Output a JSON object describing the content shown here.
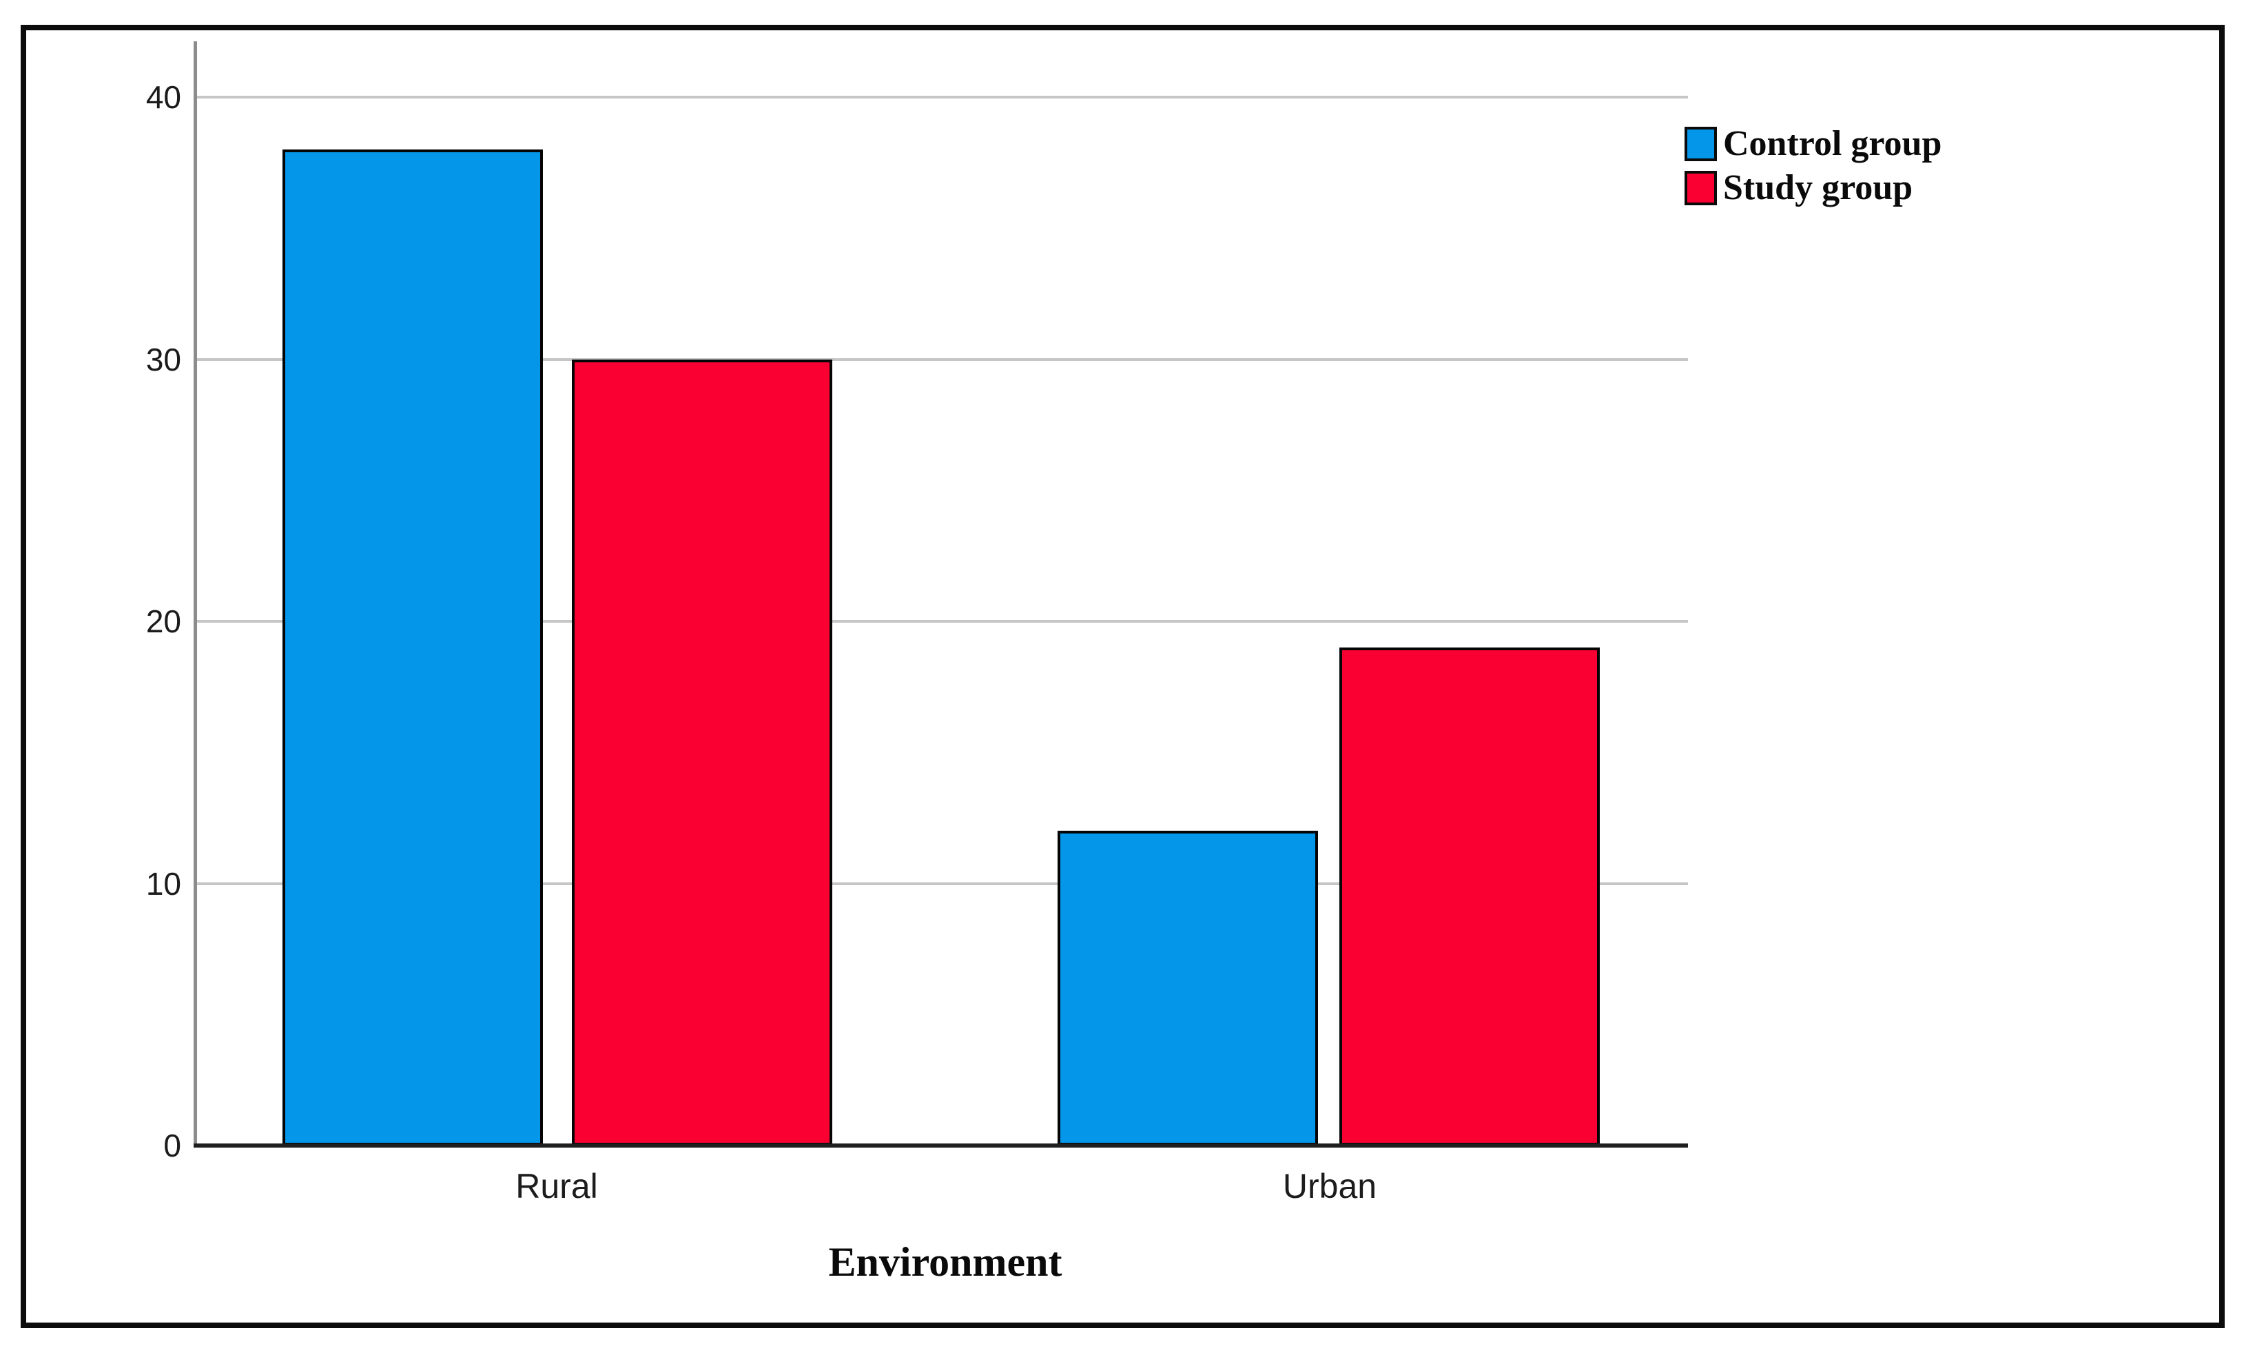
{
  "chart_data": {
    "type": "bar",
    "title": "",
    "xlabel": "Environment",
    "ylabel": "",
    "categories": [
      "Rural",
      "Urban"
    ],
    "series": [
      {
        "name": "Control group",
        "color": "#0496E8",
        "values": [
          38,
          12
        ]
      },
      {
        "name": "Study group",
        "color": "#FA0032",
        "values": [
          30,
          19
        ]
      }
    ],
    "ylim": [
      0,
      40
    ],
    "yticks": [
      0,
      10,
      20,
      30,
      40
    ],
    "grid": "horizontal",
    "gridline_color": "#c6c6c6",
    "bar_outline_color": "#050505",
    "legend_position": "top-right"
  }
}
